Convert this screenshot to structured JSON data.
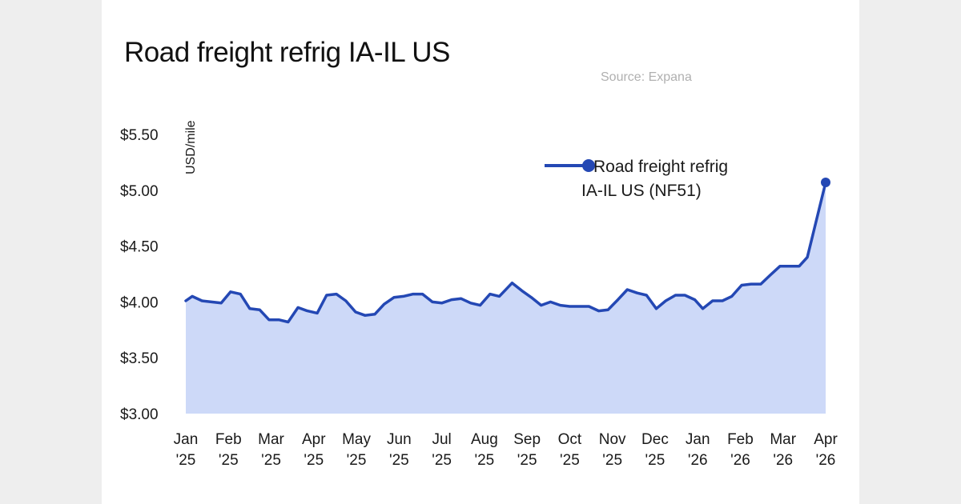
{
  "page": {
    "title": "Road freight refrig IA-IL US",
    "source": "Source: Expana"
  },
  "colors": {
    "line": "#2448b4",
    "fill": "#cdd9f8",
    "background": "#eeeeee",
    "card": "#ffffff"
  },
  "chart_data": {
    "type": "area",
    "title": "Road freight refrig IA-IL US",
    "subtitle": "Source: Expana",
    "xlabel": "",
    "ylabel": "USD/mile",
    "ylim": [
      3.0,
      5.5
    ],
    "yticks": [
      3.0,
      3.5,
      4.0,
      4.5,
      5.0,
      5.5
    ],
    "ytick_labels": [
      "$3.00",
      "$3.50",
      "$4.00",
      "$4.50",
      "$5.00",
      "$5.50"
    ],
    "grid": false,
    "legend_position": "top-right",
    "x_range_months": [
      0,
      15
    ],
    "xticks": [
      {
        "month": 0,
        "line1": "Jan",
        "line2": "'25"
      },
      {
        "month": 1,
        "line1": "Feb",
        "line2": "'25"
      },
      {
        "month": 2,
        "line1": "Mar",
        "line2": "'25"
      },
      {
        "month": 3,
        "line1": "Apr",
        "line2": "'25"
      },
      {
        "month": 4,
        "line1": "May",
        "line2": "'25"
      },
      {
        "month": 5,
        "line1": "Jun",
        "line2": "'25"
      },
      {
        "month": 6,
        "line1": "Jul",
        "line2": "'25"
      },
      {
        "month": 7,
        "line1": "Aug",
        "line2": "'25"
      },
      {
        "month": 8,
        "line1": "Sep",
        "line2": "'25"
      },
      {
        "month": 9,
        "line1": "Oct",
        "line2": "'25"
      },
      {
        "month": 10,
        "line1": "Nov",
        "line2": "'25"
      },
      {
        "month": 11,
        "line1": "Dec",
        "line2": "'25"
      },
      {
        "month": 12,
        "line1": "Jan",
        "line2": "'26"
      },
      {
        "month": 13,
        "line1": "Feb",
        "line2": "'26"
      },
      {
        "month": 14,
        "line1": "Mar",
        "line2": "'26"
      },
      {
        "month": 15,
        "line1": "Apr",
        "line2": "'26"
      }
    ],
    "series": [
      {
        "name": "Road freight refrig IA-IL US (NF51)",
        "legend_line1": "Road freight refrig",
        "legend_line2": "IA-IL US (NF51)",
        "x_months": [
          0.0,
          0.15,
          0.38,
          0.6,
          0.83,
          1.05,
          1.28,
          1.5,
          1.73,
          1.95,
          2.18,
          2.4,
          2.63,
          2.85,
          3.08,
          3.3,
          3.53,
          3.75,
          3.98,
          4.2,
          4.43,
          4.65,
          4.88,
          5.1,
          5.33,
          5.55,
          5.78,
          6.0,
          6.23,
          6.45,
          6.68,
          6.9,
          7.13,
          7.35,
          7.65,
          7.88,
          8.1,
          8.33,
          8.55,
          8.78,
          9.0,
          9.23,
          9.45,
          9.68,
          9.9,
          10.13,
          10.35,
          10.58,
          10.8,
          11.03,
          11.25,
          11.48,
          11.7,
          11.93,
          12.12,
          12.35,
          12.58,
          12.8,
          13.03,
          13.25,
          13.48,
          13.7,
          13.93,
          14.15,
          14.38,
          14.57,
          15.0
        ],
        "values": [
          4.01,
          4.05,
          4.01,
          4.0,
          3.99,
          4.09,
          4.07,
          3.94,
          3.93,
          3.84,
          3.84,
          3.82,
          3.95,
          3.92,
          3.9,
          4.06,
          4.07,
          4.01,
          3.91,
          3.88,
          3.89,
          3.98,
          4.04,
          4.05,
          4.07,
          4.07,
          4.0,
          3.99,
          4.02,
          4.03,
          3.99,
          3.97,
          4.07,
          4.05,
          4.17,
          4.1,
          4.04,
          3.97,
          4.0,
          3.97,
          3.96,
          3.96,
          3.96,
          3.92,
          3.93,
          4.02,
          4.11,
          4.08,
          4.06,
          3.94,
          4.01,
          4.06,
          4.06,
          4.02,
          3.94,
          4.01,
          4.01,
          4.05,
          4.15,
          4.16,
          4.16,
          4.24,
          4.32,
          4.32,
          4.32,
          4.4,
          5.07
        ],
        "last_point_marker": true
      }
    ]
  }
}
